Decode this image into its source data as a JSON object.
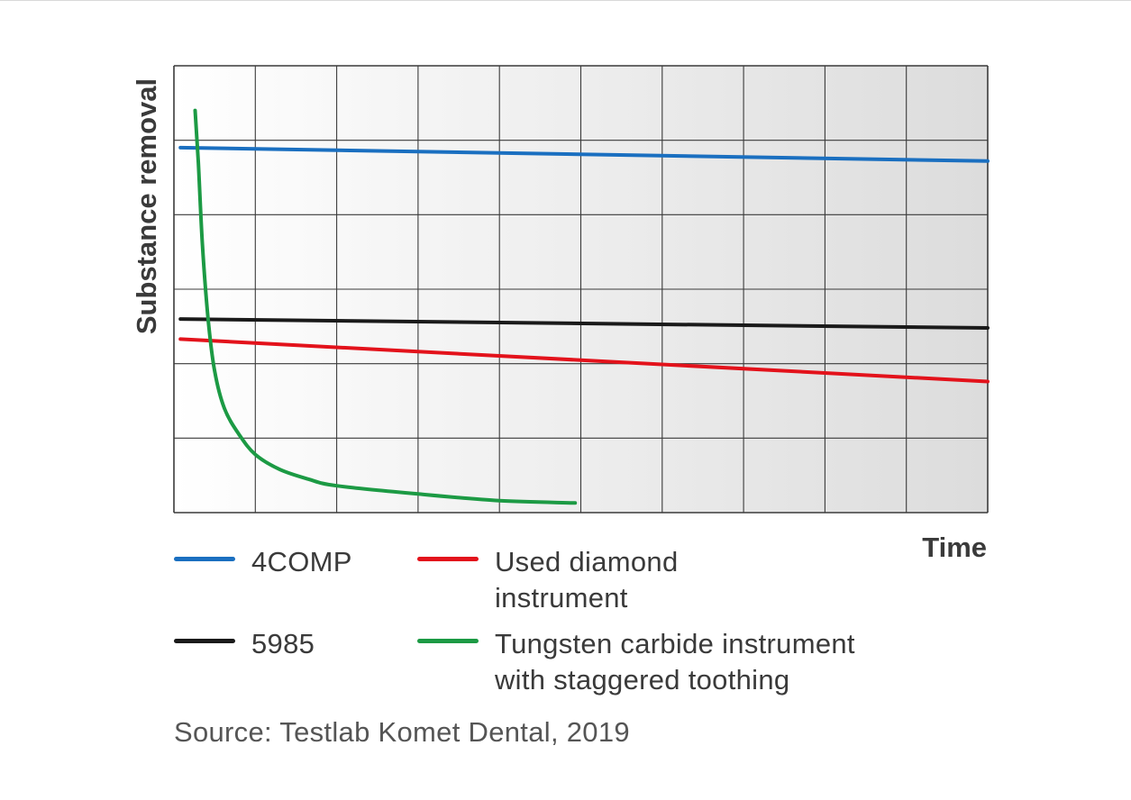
{
  "chart_data": {
    "type": "line",
    "xlabel": "Time",
    "ylabel": "Substance removal",
    "xlim": [
      0,
      10
    ],
    "ylim": [
      0,
      6
    ],
    "grid": true,
    "legend_position": "bottom",
    "series": [
      {
        "name": "4COMP",
        "color": "#1a6fc0",
        "x": [
          0.08,
          10
        ],
        "y": [
          4.9,
          4.72
        ]
      },
      {
        "name": "5985",
        "color": "#1a1a1a",
        "x": [
          0.08,
          10
        ],
        "y": [
          2.6,
          2.48
        ]
      },
      {
        "name": "Used diamond\ninstrument",
        "color": "#e3121b",
        "x": [
          0.08,
          10
        ],
        "y": [
          2.33,
          1.76
        ]
      },
      {
        "name": "Tungsten carbide instrument\nwith staggered toothing",
        "color": "#1c9a44",
        "x": [
          0.26,
          0.3,
          0.35,
          0.42,
          0.5,
          0.62,
          0.8,
          1.0,
          1.3,
          1.65,
          2.0,
          3.0,
          4.0,
          4.93
        ],
        "y": [
          5.4,
          4.7,
          3.6,
          2.6,
          1.9,
          1.4,
          1.05,
          0.78,
          0.58,
          0.45,
          0.36,
          0.25,
          0.16,
          0.13
        ]
      }
    ]
  },
  "source": "Source: Testlab Komet Dental, 2019",
  "colors": {
    "plot_gradient_left": "#ffffff",
    "plot_gradient_right": "#dcdcdc",
    "grid": "#3a3a3a"
  }
}
